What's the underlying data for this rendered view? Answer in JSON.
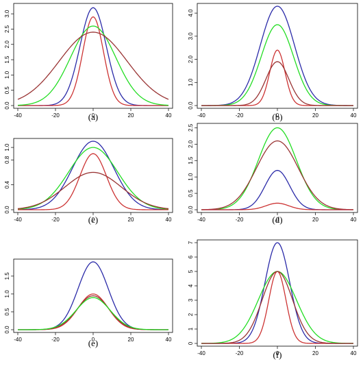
{
  "chart_data": [
    {
      "panel": "a",
      "label": "(a)",
      "type": "line",
      "xlim": [
        -40,
        40
      ],
      "ylim": [
        0,
        3.25
      ],
      "xticks": [
        "-40",
        "-20",
        "0",
        "20",
        "40"
      ],
      "yticks": [
        "0.0",
        "0.5",
        "1.0",
        "1.5",
        "2.0",
        "2.5",
        "3.0"
      ],
      "series": [
        {
          "color": "#2a2aa8",
          "peak": 3.2,
          "sigma": 7
        },
        {
          "color": "#cc3333",
          "peak": 2.9,
          "sigma": 5.5
        },
        {
          "color": "#22dd22",
          "peak": 2.6,
          "sigma": 12
        },
        {
          "color": "#993333",
          "peak": 2.4,
          "sigma": 18
        }
      ]
    },
    {
      "panel": "b",
      "label": "(b)",
      "type": "line",
      "xlim": [
        -40,
        40
      ],
      "ylim": [
        0,
        4.3
      ],
      "xticks": [
        "-40",
        "-20",
        "0",
        "20",
        "40"
      ],
      "yticks": [
        "0.0",
        "1.0",
        "2.0",
        "3.0",
        "4.0"
      ],
      "series": [
        {
          "color": "#2a2aa8",
          "peak": 4.3,
          "sigma": 9
        },
        {
          "color": "#22dd22",
          "peak": 3.5,
          "sigma": 8.5
        },
        {
          "color": "#cc3333",
          "peak": 2.4,
          "sigma": 4
        },
        {
          "color": "#993333",
          "peak": 1.9,
          "sigma": 6
        }
      ]
    },
    {
      "panel": "c",
      "label": "(c)",
      "type": "line",
      "xlim": [
        -40,
        40
      ],
      "ylim": [
        0,
        1.1
      ],
      "xticks": [
        "-40",
        "-20",
        "0",
        "20",
        "40"
      ],
      "yticks": [
        "0.0",
        "0.4",
        "0.8",
        "1.0"
      ],
      "series": [
        {
          "color": "#2a2aa8",
          "peak": 1.1,
          "sigma": 11
        },
        {
          "color": "#22dd22",
          "peak": 1.0,
          "sigma": 13
        },
        {
          "color": "#cc3333",
          "peak": 0.9,
          "sigma": 7
        },
        {
          "color": "#993333",
          "peak": 0.6,
          "sigma": 15
        }
      ]
    },
    {
      "panel": "d",
      "label": "(d)",
      "type": "line",
      "xlim": [
        -40,
        40
      ],
      "ylim": [
        0,
        2.55
      ],
      "xticks": [
        "-40",
        "-20",
        "0",
        "20",
        "40"
      ],
      "yticks": [
        "0.0",
        "0.5",
        "1.0",
        "1.5",
        "2.0",
        "2.5"
      ],
      "series": [
        {
          "color": "#22dd22",
          "peak": 2.5,
          "sigma": 10
        },
        {
          "color": "#993333",
          "peak": 2.1,
          "sigma": 11
        },
        {
          "color": "#2a2aa8",
          "peak": 1.2,
          "sigma": 6.5
        },
        {
          "color": "#cc3333",
          "peak": 0.2,
          "sigma": 6
        }
      ]
    },
    {
      "panel": "e",
      "label": "(e)",
      "type": "line",
      "xlim": [
        -40,
        40
      ],
      "ylim": [
        0,
        1.9
      ],
      "xticks": [
        "-40",
        "-20",
        "0",
        "20",
        "40"
      ],
      "yticks": [
        "0.0",
        "0.5",
        "1.0",
        "1.5"
      ],
      "series": [
        {
          "color": "#2a2aa8",
          "peak": 1.9,
          "sigma": 8
        },
        {
          "color": "#cc3333",
          "peak": 1.0,
          "sigma": 8
        },
        {
          "color": "#993333",
          "peak": 0.95,
          "sigma": 8.5
        },
        {
          "color": "#22dd22",
          "peak": 0.9,
          "sigma": 9
        }
      ]
    },
    {
      "panel": "f",
      "label": "(f)",
      "type": "line",
      "xlim": [
        -40,
        40
      ],
      "ylim": [
        0,
        7
      ],
      "xticks": [
        "-40",
        "-20",
        "0",
        "20",
        "40"
      ],
      "yticks": [
        "0",
        "1",
        "2",
        "3",
        "4",
        "5",
        "6",
        "7"
      ],
      "series": [
        {
          "color": "#2a2aa8",
          "peak": 7.0,
          "sigma": 6.5
        },
        {
          "color": "#cc3333",
          "peak": 5.0,
          "sigma": 4.5
        },
        {
          "color": "#22dd22",
          "peak": 5.0,
          "sigma": 10
        },
        {
          "color": "#993333",
          "peak": 5.0,
          "sigma": 8
        }
      ]
    }
  ]
}
